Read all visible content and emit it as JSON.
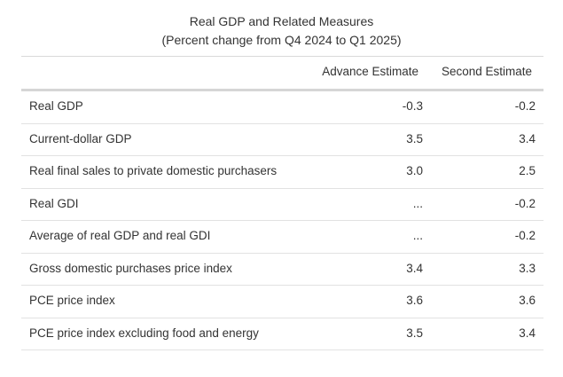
{
  "table": {
    "title_line1": "Real GDP and Related Measures",
    "title_line2": "(Percent change from Q4 2024 to Q1 2025)",
    "columns": {
      "advance": "Advance Estimate",
      "second": "Second Estimate"
    },
    "rows": [
      {
        "label": "Real GDP",
        "advance": "-0.3",
        "second": "-0.2"
      },
      {
        "label": "Current-dollar GDP",
        "advance": "3.5",
        "second": "3.4"
      },
      {
        "label": "Real final sales to private domestic purchasers",
        "advance": "3.0",
        "second": "2.5"
      },
      {
        "label": "Real GDI",
        "advance": "...",
        "second": "-0.2"
      },
      {
        "label": "Average of real GDP and real GDI",
        "advance": "...",
        "second": "-0.2"
      },
      {
        "label": "Gross domestic purchases price index",
        "advance": "3.4",
        "second": "3.3"
      },
      {
        "label": "PCE price index",
        "advance": "3.6",
        "second": "3.6"
      },
      {
        "label": "PCE price index excluding food and energy",
        "advance": "3.5",
        "second": "3.4"
      }
    ]
  }
}
